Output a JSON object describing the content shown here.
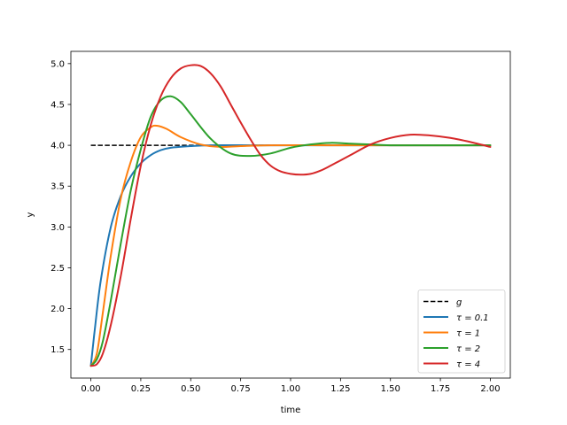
{
  "chart_data": {
    "type": "line",
    "xlabel": "time",
    "ylabel": "y",
    "xlim": [
      -0.1,
      2.1
    ],
    "ylim": [
      1.15,
      5.15
    ],
    "xticks": [
      0.0,
      0.25,
      0.5,
      0.75,
      1.0,
      1.25,
      1.5,
      1.75,
      2.0
    ],
    "xtick_labels": [
      "0.00",
      "0.25",
      "0.50",
      "0.75",
      "1.00",
      "1.25",
      "1.50",
      "1.75",
      "2.00"
    ],
    "yticks": [
      1.5,
      2.0,
      2.5,
      3.0,
      3.5,
      4.0,
      4.5,
      5.0
    ],
    "ytick_labels": [
      "1.5",
      "2.0",
      "2.5",
      "3.0",
      "3.5",
      "4.0",
      "4.5",
      "5.0"
    ],
    "grid": false,
    "legend_position": "lower right",
    "series": [
      {
        "name": "g",
        "label_main": "g",
        "label_sub": "",
        "color": "#000000",
        "dashed": true,
        "points": [
          [
            0.0,
            4.0
          ],
          [
            2.0,
            4.0
          ]
        ]
      },
      {
        "name": "τ = 0.1",
        "label_main": "τ = 0.1",
        "label_sub": "",
        "color": "#1f77b4",
        "dashed": false,
        "points": [
          [
            0.0,
            1.3
          ],
          [
            0.02,
            1.75
          ],
          [
            0.05,
            2.35
          ],
          [
            0.1,
            3.0
          ],
          [
            0.15,
            3.38
          ],
          [
            0.2,
            3.62
          ],
          [
            0.25,
            3.78
          ],
          [
            0.3,
            3.88
          ],
          [
            0.35,
            3.94
          ],
          [
            0.4,
            3.97
          ],
          [
            0.5,
            3.99
          ],
          [
            0.6,
            4.0
          ],
          [
            0.8,
            4.0
          ],
          [
            1.0,
            4.0
          ],
          [
            1.5,
            4.0
          ],
          [
            2.0,
            4.0
          ]
        ]
      },
      {
        "name": "τ = 1",
        "label_main": "τ = 1",
        "label_sub": "",
        "color": "#ff7f0e",
        "dashed": false,
        "points": [
          [
            0.0,
            1.3
          ],
          [
            0.03,
            1.45
          ],
          [
            0.06,
            1.95
          ],
          [
            0.1,
            2.65
          ],
          [
            0.15,
            3.35
          ],
          [
            0.2,
            3.8
          ],
          [
            0.25,
            4.1
          ],
          [
            0.3,
            4.22
          ],
          [
            0.33,
            4.24
          ],
          [
            0.38,
            4.2
          ],
          [
            0.45,
            4.1
          ],
          [
            0.55,
            4.01
          ],
          [
            0.65,
            3.98
          ],
          [
            0.75,
            3.99
          ],
          [
            0.9,
            4.0
          ],
          [
            1.2,
            4.0
          ],
          [
            1.5,
            4.0
          ],
          [
            2.0,
            4.0
          ]
        ]
      },
      {
        "name": "τ = 2",
        "label_main": "τ = 2",
        "label_sub": "",
        "color": "#2ca02c",
        "dashed": false,
        "points": [
          [
            0.0,
            1.3
          ],
          [
            0.03,
            1.38
          ],
          [
            0.06,
            1.6
          ],
          [
            0.1,
            2.1
          ],
          [
            0.15,
            2.8
          ],
          [
            0.2,
            3.45
          ],
          [
            0.25,
            3.95
          ],
          [
            0.3,
            4.35
          ],
          [
            0.35,
            4.55
          ],
          [
            0.4,
            4.6
          ],
          [
            0.45,
            4.53
          ],
          [
            0.5,
            4.38
          ],
          [
            0.6,
            4.08
          ],
          [
            0.7,
            3.9
          ],
          [
            0.8,
            3.87
          ],
          [
            0.9,
            3.9
          ],
          [
            1.0,
            3.97
          ],
          [
            1.1,
            4.01
          ],
          [
            1.2,
            4.03
          ],
          [
            1.3,
            4.02
          ],
          [
            1.4,
            4.01
          ],
          [
            1.5,
            4.0
          ],
          [
            1.7,
            4.0
          ],
          [
            2.0,
            4.0
          ]
        ]
      },
      {
        "name": "τ = 4",
        "label_main": "τ = 4",
        "label_sub": "",
        "color": "#d62728",
        "dashed": false,
        "points": [
          [
            0.0,
            1.3
          ],
          [
            0.03,
            1.32
          ],
          [
            0.06,
            1.45
          ],
          [
            0.1,
            1.8
          ],
          [
            0.15,
            2.4
          ],
          [
            0.2,
            3.1
          ],
          [
            0.25,
            3.75
          ],
          [
            0.3,
            4.25
          ],
          [
            0.35,
            4.6
          ],
          [
            0.4,
            4.82
          ],
          [
            0.45,
            4.94
          ],
          [
            0.5,
            4.98
          ],
          [
            0.55,
            4.97
          ],
          [
            0.6,
            4.88
          ],
          [
            0.65,
            4.72
          ],
          [
            0.7,
            4.5
          ],
          [
            0.75,
            4.28
          ],
          [
            0.8,
            4.07
          ],
          [
            0.85,
            3.88
          ],
          [
            0.9,
            3.75
          ],
          [
            0.95,
            3.68
          ],
          [
            1.0,
            3.65
          ],
          [
            1.05,
            3.64
          ],
          [
            1.1,
            3.65
          ],
          [
            1.15,
            3.69
          ],
          [
            1.2,
            3.75
          ],
          [
            1.3,
            3.88
          ],
          [
            1.4,
            4.01
          ],
          [
            1.5,
            4.09
          ],
          [
            1.6,
            4.13
          ],
          [
            1.7,
            4.12
          ],
          [
            1.8,
            4.09
          ],
          [
            1.9,
            4.04
          ],
          [
            2.0,
            3.98
          ]
        ]
      }
    ]
  }
}
